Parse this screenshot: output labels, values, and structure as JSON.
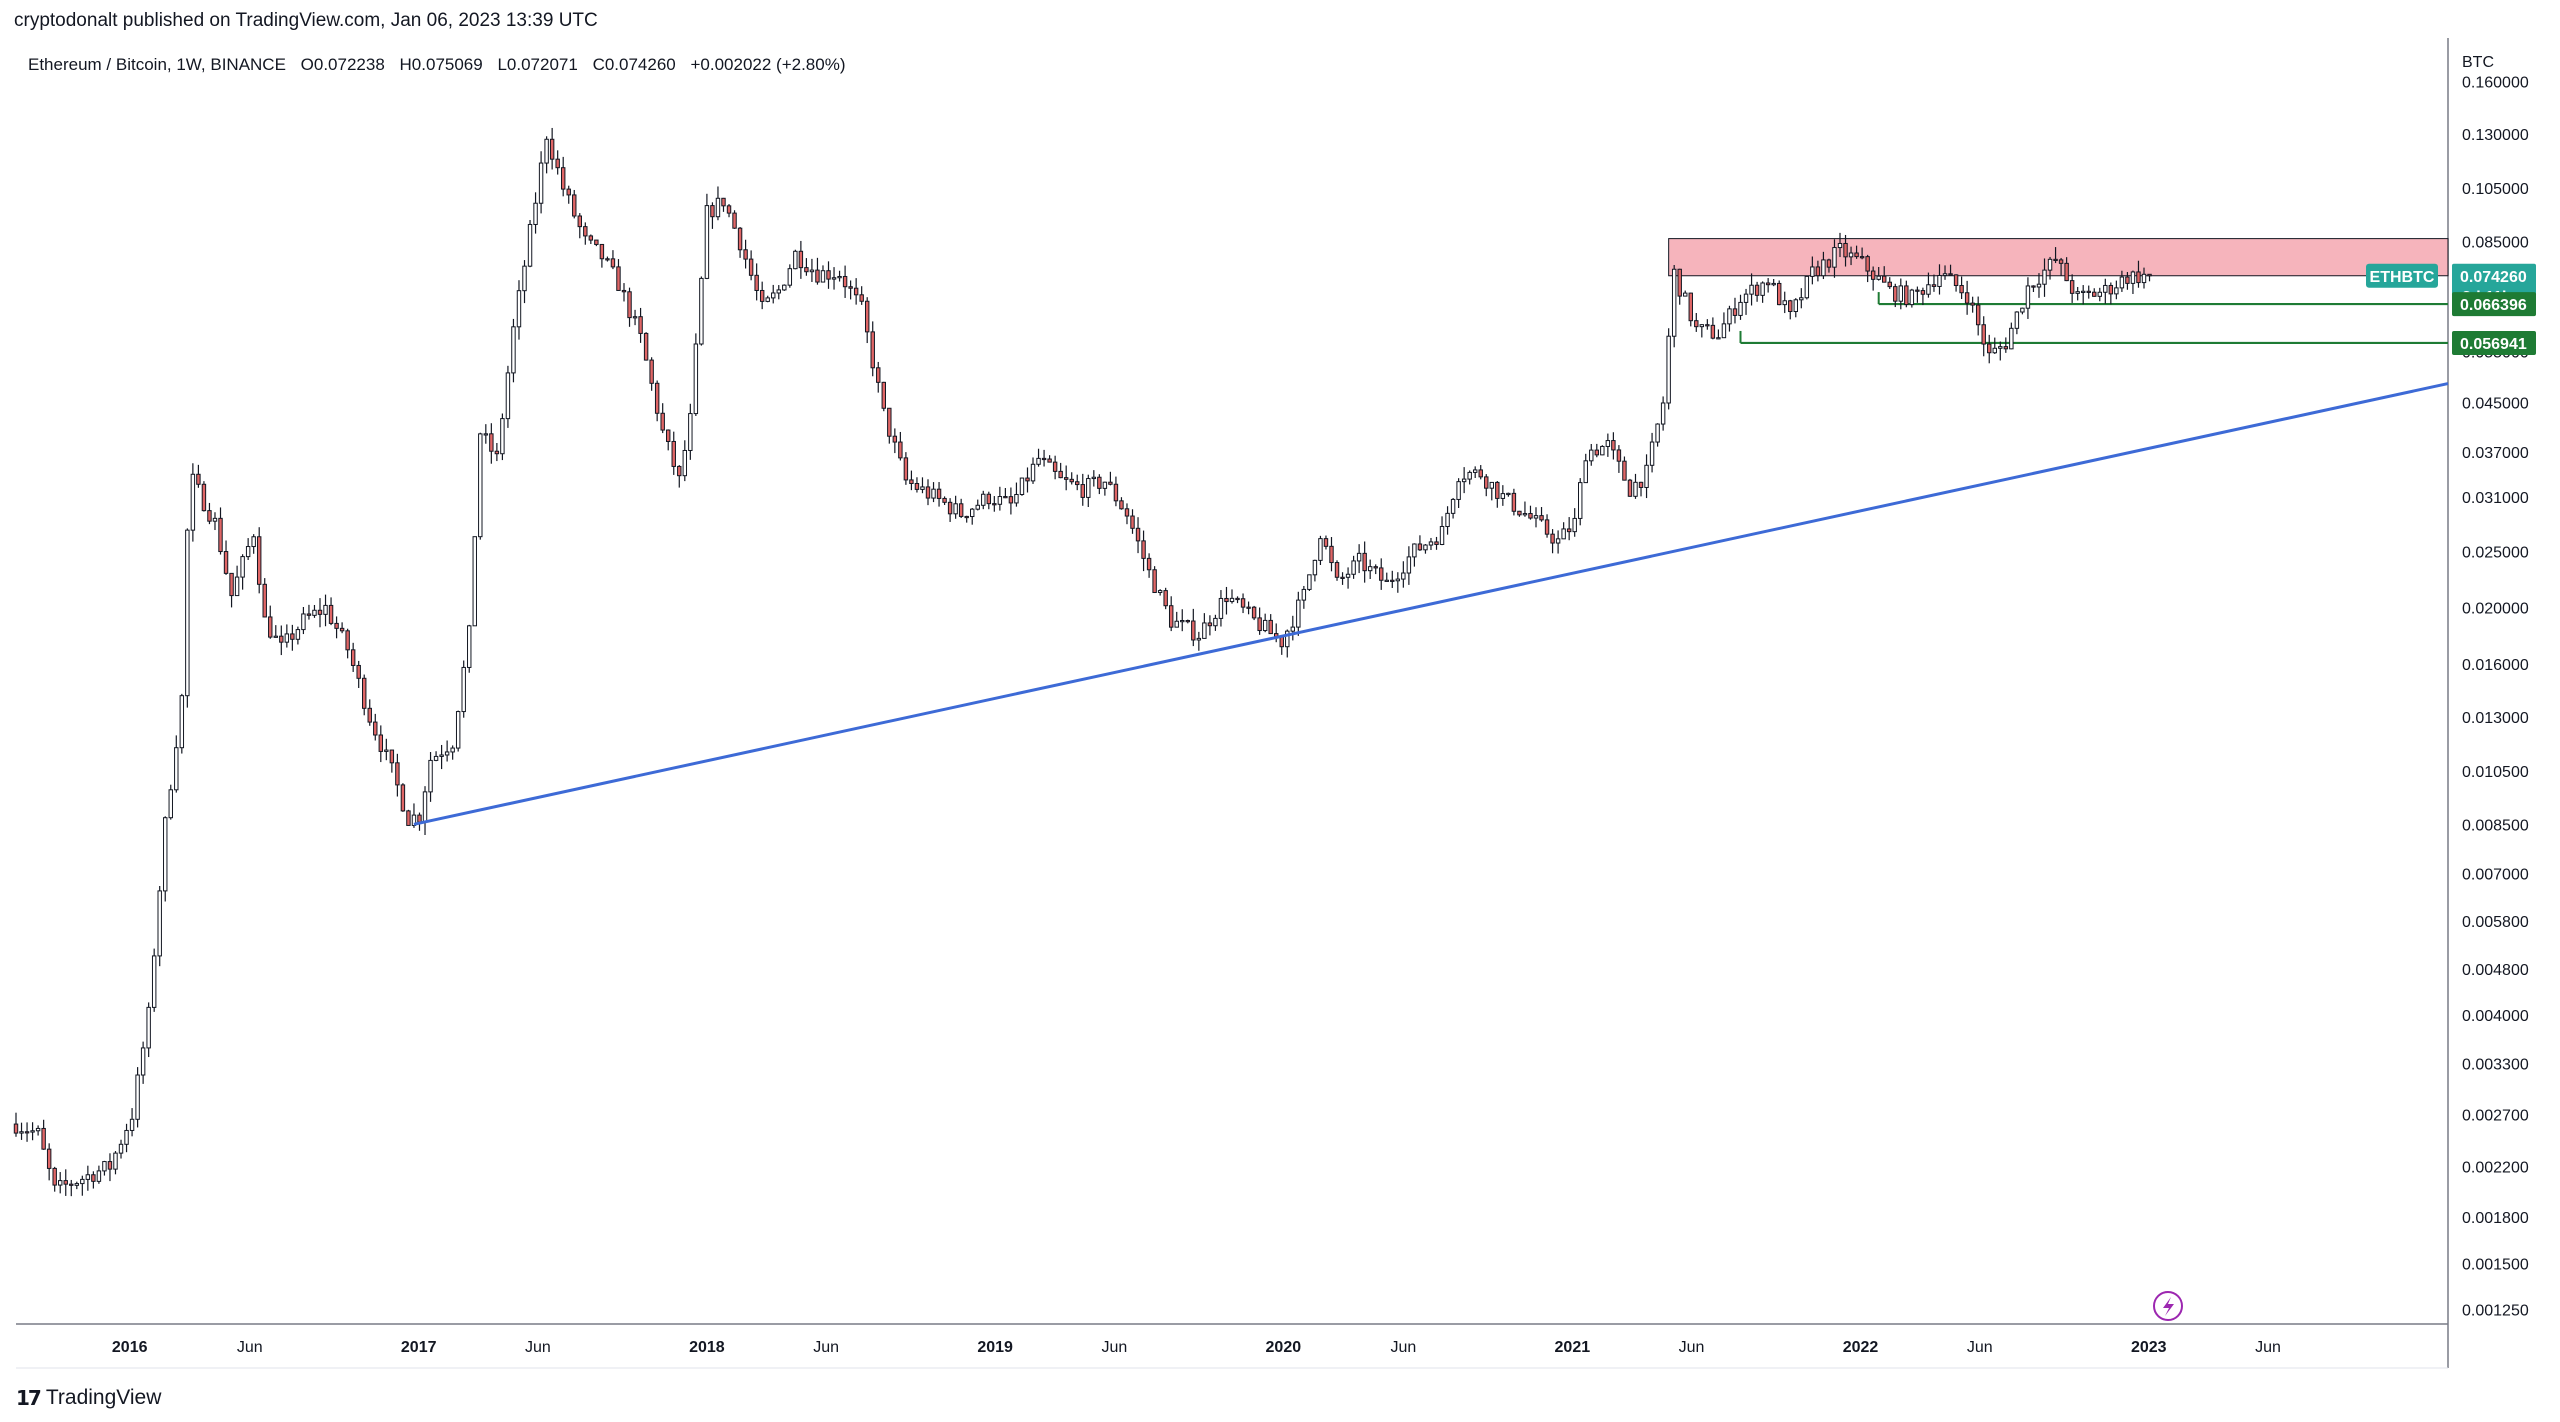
{
  "header": {
    "publisher": "cryptodonalt published on TradingView.com, Jan 06, 2023 13:39 UTC"
  },
  "symbol": {
    "name": "Ethereum / Bitcoin, 1W, BINANCE",
    "open": "O0.072238",
    "high": "H0.075069",
    "low": "L0.072071",
    "close": "C0.074260",
    "change": "+0.002022 (+2.80%)"
  },
  "footer": {
    "brand": "TradingView"
  },
  "colors": {
    "up": "#26a69a",
    "down": "#ef5350",
    "candle_body_up": "#ffffff",
    "candle_body_down": "#e06666",
    "trendline": "#3d6ad6",
    "resistance_zone": "#f4a7b0",
    "support": "#1e7b34",
    "axis_line": "#787b86"
  },
  "chart_data": {
    "type": "candlestick",
    "title": "Ethereum / Bitcoin, 1W, BINANCE",
    "y_axis_unit": "BTC",
    "y_scale": "log",
    "ylim": [
      0.00118,
      0.19
    ],
    "y_ticks": [
      "0.160000",
      "0.130000",
      "0.105000",
      "0.085000",
      "0.065000",
      "0.055000",
      "0.045000",
      "0.037000",
      "0.031000",
      "0.025000",
      "0.020000",
      "0.016000",
      "0.013000",
      "0.010500",
      "0.008500",
      "0.007000",
      "0.005800",
      "0.004800",
      "0.004000",
      "0.003300",
      "0.002700",
      "0.002200",
      "0.001800",
      "0.001500",
      "0.001250"
    ],
    "x_ticks": [
      "2016",
      "Jun",
      "2017",
      "Jun",
      "2018",
      "Jun",
      "2019",
      "Jun",
      "2020",
      "Jun",
      "2021",
      "Jun",
      "2022",
      "Jun",
      "2023",
      "Jun"
    ],
    "x_tick_dates": [
      "2016-01-01",
      "2016-06-01",
      "2017-01-01",
      "2017-06-01",
      "2018-01-01",
      "2018-06-01",
      "2019-01-01",
      "2019-06-01",
      "2020-01-01",
      "2020-06-01",
      "2021-01-01",
      "2021-06-01",
      "2022-01-01",
      "2022-06-01",
      "2023-01-01",
      "2023-06-01"
    ],
    "x_range": [
      "2015-08-10",
      "2024-01-15"
    ],
    "price_path": [
      [
        "2015-08-10",
        0.0026
      ],
      [
        "2015-09-07",
        0.0025
      ],
      [
        "2015-09-28",
        0.002
      ],
      [
        "2015-11-02",
        0.0021
      ],
      [
        "2015-12-07",
        0.0022
      ],
      [
        "2016-01-04",
        0.0027
      ],
      [
        "2016-01-25",
        0.004
      ],
      [
        "2016-02-15",
        0.0085
      ],
      [
        "2016-03-07",
        0.014
      ],
      [
        "2016-03-14",
        0.027
      ],
      [
        "2016-03-21",
        0.033
      ],
      [
        "2016-04-18",
        0.028
      ],
      [
        "2016-05-09",
        0.021
      ],
      [
        "2016-06-06",
        0.027
      ],
      [
        "2016-06-20",
        0.019
      ],
      [
        "2016-07-11",
        0.017
      ],
      [
        "2016-08-08",
        0.019
      ],
      [
        "2016-09-05",
        0.02
      ],
      [
        "2016-10-03",
        0.017
      ],
      [
        "2016-10-31",
        0.013
      ],
      [
        "2016-11-28",
        0.0105
      ],
      [
        "2016-12-19",
        0.0087
      ],
      [
        "2017-01-02",
        0.0088
      ],
      [
        "2017-01-16",
        0.011
      ],
      [
        "2017-02-13",
        0.0118
      ],
      [
        "2017-03-06",
        0.018
      ],
      [
        "2017-03-20",
        0.04
      ],
      [
        "2017-04-10",
        0.036
      ],
      [
        "2017-05-01",
        0.06
      ],
      [
        "2017-05-29",
        0.1
      ],
      [
        "2017-06-12",
        0.13
      ],
      [
        "2017-07-03",
        0.105
      ],
      [
        "2017-07-31",
        0.085
      ],
      [
        "2017-08-21",
        0.08
      ],
      [
        "2017-09-11",
        0.072
      ],
      [
        "2017-10-09",
        0.058
      ],
      [
        "2017-11-06",
        0.04
      ],
      [
        "2017-11-27",
        0.033
      ],
      [
        "2017-12-11",
        0.042
      ],
      [
        "2018-01-01",
        0.095
      ],
      [
        "2018-01-22",
        0.1
      ],
      [
        "2018-02-12",
        0.085
      ],
      [
        "2018-03-12",
        0.065
      ],
      [
        "2018-04-02",
        0.07
      ],
      [
        "2018-04-23",
        0.081
      ],
      [
        "2018-05-21",
        0.075
      ],
      [
        "2018-06-18",
        0.075
      ],
      [
        "2018-07-16",
        0.065
      ],
      [
        "2018-08-13",
        0.043
      ],
      [
        "2018-09-10",
        0.033
      ],
      [
        "2018-10-15",
        0.031
      ],
      [
        "2018-11-19",
        0.029
      ],
      [
        "2018-12-24",
        0.031
      ],
      [
        "2019-01-21",
        0.03
      ],
      [
        "2019-02-25",
        0.036
      ],
      [
        "2019-03-25",
        0.033
      ],
      [
        "2019-04-22",
        0.032
      ],
      [
        "2019-05-20",
        0.033
      ],
      [
        "2019-06-17",
        0.029
      ],
      [
        "2019-07-15",
        0.023
      ],
      [
        "2019-08-12",
        0.019
      ],
      [
        "2019-09-16",
        0.018
      ],
      [
        "2019-10-21",
        0.021
      ],
      [
        "2019-11-25",
        0.019
      ],
      [
        "2019-12-30",
        0.0175
      ],
      [
        "2020-01-27",
        0.021
      ],
      [
        "2020-02-17",
        0.027
      ],
      [
        "2020-03-09",
        0.022
      ],
      [
        "2020-04-06",
        0.024
      ],
      [
        "2020-05-11",
        0.022
      ],
      [
        "2020-06-15",
        0.025
      ],
      [
        "2020-07-20",
        0.027
      ],
      [
        "2020-08-10",
        0.034
      ],
      [
        "2020-09-07",
        0.034
      ],
      [
        "2020-10-05",
        0.031
      ],
      [
        "2020-11-02",
        0.029
      ],
      [
        "2020-12-14",
        0.026
      ],
      [
        "2021-01-04",
        0.028
      ],
      [
        "2021-01-18",
        0.037
      ],
      [
        "2021-02-15",
        0.038
      ],
      [
        "2021-03-15",
        0.032
      ],
      [
        "2021-04-05",
        0.034
      ],
      [
        "2021-04-26",
        0.045
      ],
      [
        "2021-05-10",
        0.075
      ],
      [
        "2021-06-07",
        0.06
      ],
      [
        "2021-07-05",
        0.059
      ],
      [
        "2021-08-02",
        0.068
      ],
      [
        "2021-09-06",
        0.073
      ],
      [
        "2021-10-04",
        0.063
      ],
      [
        "2021-11-01",
        0.075
      ],
      [
        "2021-12-06",
        0.082
      ],
      [
        "2022-01-03",
        0.078
      ],
      [
        "2022-02-07",
        0.07
      ],
      [
        "2022-03-07",
        0.068
      ],
      [
        "2022-04-11",
        0.075
      ],
      [
        "2022-05-16",
        0.069
      ],
      [
        "2022-06-13",
        0.054
      ],
      [
        "2022-07-04",
        0.057
      ],
      [
        "2022-08-01",
        0.071
      ],
      [
        "2022-09-05",
        0.079
      ],
      [
        "2022-10-03",
        0.068
      ],
      [
        "2022-11-07",
        0.07
      ],
      [
        "2022-12-05",
        0.074
      ],
      [
        "2023-01-02",
        0.07426
      ]
    ],
    "trendline": {
      "from": [
        "2016-12-26",
        0.0085
      ],
      "to": [
        "2024-01-15",
        0.0485
      ],
      "color": "#3d6ad6"
    },
    "resistance_zone": {
      "start": "2021-05-03",
      "low": 0.07426,
      "high": 0.086
    },
    "support_lines": [
      {
        "start": "2022-01-24",
        "value": 0.066396,
        "label": "0.066396"
      },
      {
        "start": "2021-08-02",
        "value": 0.056941,
        "label": "0.056941"
      }
    ],
    "last_price": {
      "value": 0.07426,
      "label": "0.074260",
      "symbol": "ETHBTC",
      "countdown": "2d 11h"
    }
  }
}
